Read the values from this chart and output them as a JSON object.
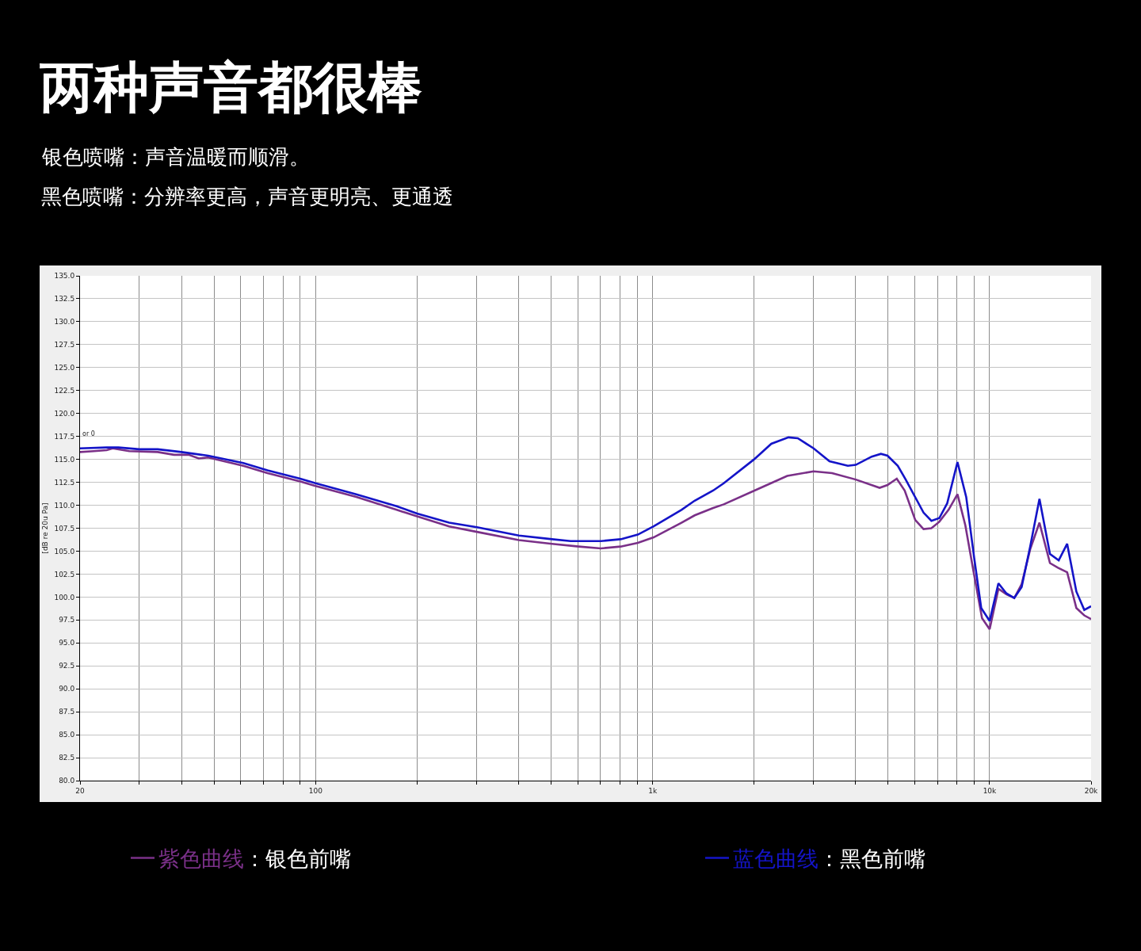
{
  "chart_data": {
    "type": "line",
    "title": "两种声音都很棒",
    "subtitle": "银色喷嘴：声音温暖而顺滑。",
    "ylabel": "[dB re 20u Pa]",
    "annotations": [
      "黑色喷嘴：分辨率更高，声音更明亮、更通透",
      "or 0"
    ],
    "log": "x",
    "xlim": [
      20,
      20000
    ],
    "xticks": [
      20,
      {
        "value": 30,
        "label": null
      },
      {
        "value": 40,
        "label": null
      },
      {
        "value": 50,
        "label": null
      },
      {
        "value": 60,
        "label": null
      },
      {
        "value": 70,
        "label": null
      },
      {
        "value": 80,
        "label": null
      },
      {
        "value": 90,
        "label": null
      },
      100,
      {
        "value": 200,
        "label": null
      },
      {
        "value": 300,
        "label": null
      },
      {
        "value": 400,
        "label": null
      },
      {
        "value": 500,
        "label": null
      },
      {
        "value": 600,
        "label": null
      },
      {
        "value": 700,
        "label": null
      },
      {
        "value": 800,
        "label": null
      },
      {
        "value": 900,
        "label": null
      },
      {
        "value": 1000,
        "label": "1k"
      },
      {
        "value": 2000,
        "label": null
      },
      {
        "value": 3000,
        "label": null
      },
      {
        "value": 4000,
        "label": null
      },
      {
        "value": 5000,
        "label": null
      },
      {
        "value": 6000,
        "label": null
      },
      {
        "value": 7000,
        "label": null
      },
      {
        "value": 8000,
        "label": null
      },
      {
        "value": 9000,
        "label": null
      },
      {
        "value": 10000,
        "label": "10k"
      },
      {
        "value": 20000,
        "label": "20k"
      }
    ],
    "ylim": [
      80,
      135
    ],
    "yticks": [
      {
        "value": 80,
        "label": "80.0"
      },
      {
        "value": 82.5,
        "label": "82.5"
      },
      {
        "value": 85,
        "label": "85.0"
      },
      {
        "value": 87.5,
        "label": "87.5"
      },
      {
        "value": 90,
        "label": "90.0"
      },
      {
        "value": 92.5,
        "label": "92.5"
      },
      {
        "value": 95,
        "label": "95.0"
      },
      {
        "value": 97.5,
        "label": "97.5"
      },
      {
        "value": 100,
        "label": "100.0"
      },
      {
        "value": 102.5,
        "label": "102.5"
      },
      {
        "value": 105,
        "label": "105.0"
      },
      {
        "value": 107.5,
        "label": "107.5"
      },
      {
        "value": 110,
        "label": "110.0"
      },
      {
        "value": 112.5,
        "label": "112.5"
      },
      {
        "value": 115,
        "label": "115.0"
      },
      {
        "value": 117.5,
        "label": "117.5"
      },
      {
        "value": 120,
        "label": "120.0"
      },
      {
        "value": 122.5,
        "label": "122.5"
      },
      {
        "value": 125,
        "label": "125.0"
      },
      {
        "value": 127.5,
        "label": "127.5"
      },
      {
        "value": 130,
        "label": "130.0"
      },
      {
        "value": 132.5,
        "label": "132.5"
      },
      {
        "value": 135,
        "label": "135.0"
      }
    ],
    "grid": true,
    "legend": "bottom",
    "line_style": "solid",
    "series": [
      {
        "name": "紫色曲线：银色前嘴",
        "color": "#7a3088",
        "x": [
          20,
          22,
          24,
          25,
          28,
          34,
          38,
          42,
          45,
          48,
          61,
          72,
          90,
          100,
          132,
          174,
          200,
          249,
          301,
          401,
          503,
          603,
          702,
          804,
          904,
          1007,
          1218,
          1333,
          1512,
          1626,
          2093,
          2508,
          3004,
          3408,
          4008,
          4716,
          4977,
          5302,
          5598,
          6016,
          6366,
          6718,
          7090,
          7552,
          8028,
          8472,
          8946,
          9494,
          10000,
          10620,
          11212,
          11834,
          12446,
          13192,
          14056,
          15102,
          15946,
          16984,
          18086,
          19090,
          20000
        ],
        "values": [
          115.8,
          115.9,
          116.0,
          116.2,
          115.9,
          115.8,
          115.5,
          115.5,
          115.1,
          115.2,
          114.3,
          113.5,
          112.6,
          112.1,
          110.9,
          109.5,
          108.8,
          107.7,
          107.1,
          106.2,
          105.8,
          105.5,
          105.3,
          105.5,
          105.9,
          106.5,
          108.1,
          108.9,
          109.7,
          110.1,
          111.9,
          113.2,
          113.7,
          113.5,
          112.8,
          111.9,
          112.2,
          112.9,
          111.6,
          108.4,
          107.4,
          107.5,
          108.2,
          109.5,
          111.2,
          107.8,
          102.9,
          97.7,
          96.5,
          100.9,
          100.3,
          99.9,
          101.4,
          105.2,
          108.1,
          103.7,
          103.2,
          102.7,
          98.8,
          98.0,
          97.6
        ]
      },
      {
        "name": "蓝色曲线：黑色前嘴",
        "color": "#1414c8",
        "x": [
          20,
          24,
          26,
          30,
          34,
          40,
          48,
          61,
          72,
          90,
          100,
          132,
          174,
          200,
          249,
          301,
          401,
          503,
          571,
          702,
          804,
          904,
          1007,
          1218,
          1333,
          1512,
          1626,
          2000,
          2250,
          2530,
          2696,
          3004,
          3348,
          3796,
          4008,
          4468,
          4758,
          4977,
          5340,
          5636,
          6366,
          6718,
          7090,
          7482,
          8028,
          8522,
          8996,
          9442,
          10000,
          10620,
          11212,
          11834,
          12446,
          13192,
          14056,
          15102,
          16032,
          16984,
          18086,
          19090,
          20000
        ],
        "values": [
          116.2,
          116.3,
          116.3,
          116.1,
          116.1,
          115.8,
          115.4,
          114.6,
          113.8,
          112.9,
          112.4,
          111.2,
          109.9,
          109.1,
          108.1,
          107.6,
          106.7,
          106.3,
          106.1,
          106.1,
          106.3,
          106.8,
          107.7,
          109.5,
          110.5,
          111.6,
          112.4,
          115.0,
          116.7,
          117.4,
          117.3,
          116.2,
          114.8,
          114.3,
          114.4,
          115.3,
          115.6,
          115.4,
          114.3,
          112.8,
          109.2,
          108.3,
          108.6,
          110.2,
          114.7,
          110.9,
          104.3,
          98.8,
          97.4,
          101.5,
          100.4,
          99.9,
          101.1,
          105.5,
          110.7,
          104.7,
          104.0,
          105.8,
          100.6,
          98.6,
          99.0
        ]
      }
    ]
  }
}
